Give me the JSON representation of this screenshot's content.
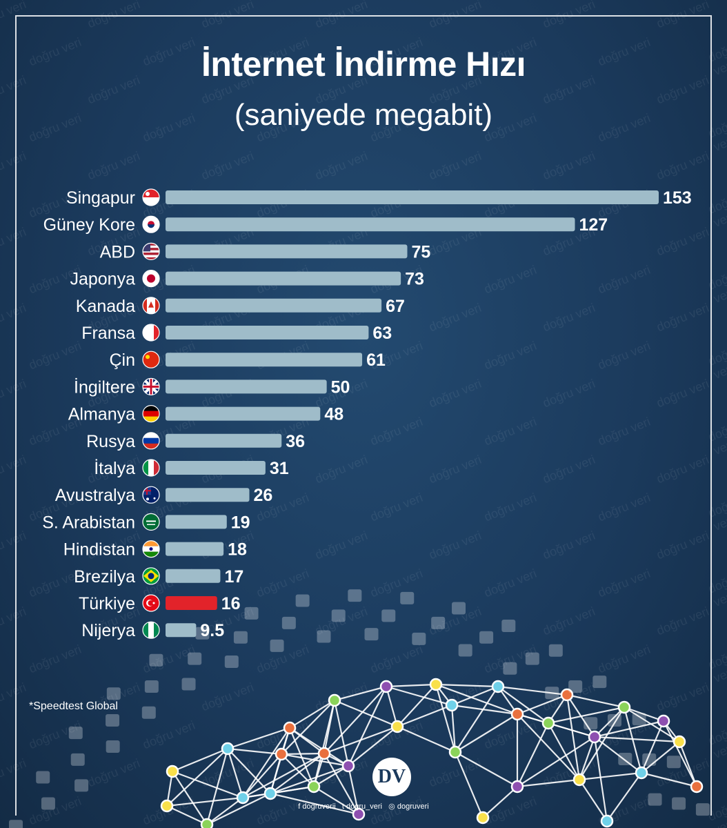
{
  "title": "İnternet İndirme Hızı",
  "subtitle": "(saniyede megabit)",
  "watermark": "doğru veri",
  "footnote": "*Speedtest Global",
  "logo_text": "DV",
  "social": {
    "facebook": "dogruverii",
    "twitter": "dogru_veri",
    "instagram": "dogruveri"
  },
  "colors": {
    "background": "#1b3a5c",
    "bar": "#9fbcc9",
    "highlight": "#e2232a",
    "text": "#ffffff"
  },
  "chart_data": {
    "type": "bar",
    "orientation": "horizontal",
    "title": "İnternet İndirme Hızı",
    "subtitle": "(saniyede megabit)",
    "xlim": [
      0,
      153
    ],
    "grid": false,
    "legend": "none",
    "categories": [
      "Singapur",
      "Güney Kore",
      "ABD",
      "Japonya",
      "Kanada",
      "Fransa",
      "Çin",
      "İngiltere",
      "Almanya",
      "Rusya",
      "İtalya",
      "Avustralya",
      "S. Arabistan",
      "Hindistan",
      "Brezilya",
      "Türkiye",
      "Nijerya"
    ],
    "values": [
      153,
      127,
      75,
      73,
      67,
      63,
      61,
      50,
      48,
      36,
      31,
      26,
      19,
      18,
      17,
      16,
      9.5
    ],
    "value_labels": [
      "153",
      "127",
      "75",
      "73",
      "67",
      "63",
      "61",
      "50",
      "48",
      "36",
      "31",
      "26",
      "19",
      "18",
      "17",
      "16",
      "9.5"
    ],
    "highlight": "Türkiye",
    "flags": [
      "sg-flag-icon",
      "kr-flag-icon",
      "us-flag-icon",
      "jp-flag-icon",
      "ca-flag-icon",
      "fr-flag-icon",
      "cn-flag-icon",
      "gb-flag-icon",
      "de-flag-icon",
      "ru-flag-icon",
      "it-flag-icon",
      "au-flag-icon",
      "sa-flag-icon",
      "in-flag-icon",
      "br-flag-icon",
      "tr-flag-icon",
      "ng-flag-icon"
    ]
  }
}
